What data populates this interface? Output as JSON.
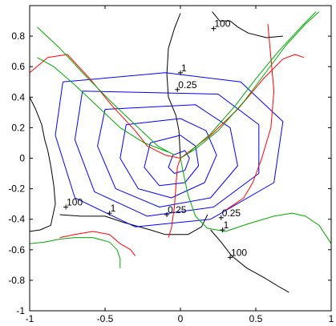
{
  "chart_data": {
    "type": "line",
    "title": "",
    "xlabel": "",
    "ylabel": "",
    "xlim": [
      -1,
      1
    ],
    "ylim": [
      -1,
      1
    ],
    "grid": false,
    "x_ticks": [
      "-1",
      "-0.5",
      "0",
      "0.5",
      "1"
    ],
    "y_ticks": [
      "-1",
      "-0.8",
      "-0.6",
      "-0.4",
      "-0.2",
      "0",
      "0.2",
      "0.4",
      "0.6",
      "0.8"
    ],
    "colors": {
      "contour_blue": "#0000ff",
      "curve_red": "#ff0000",
      "curve_green": "#00aa00",
      "curve_black": "#000000"
    },
    "annotations": [
      {
        "text": "100",
        "x": 0.22,
        "y": 0.85
      },
      {
        "text": "1",
        "x": 0.0,
        "y": 0.56
      },
      {
        "text": "0.25",
        "x": -0.02,
        "y": 0.45
      },
      {
        "text": "100",
        "x": -0.76,
        "y": -0.32
      },
      {
        "text": "1",
        "x": -0.47,
        "y": -0.36
      },
      {
        "text": "0.25",
        "x": -0.09,
        "y": -0.37
      },
      {
        "text": "0.25",
        "x": 0.27,
        "y": -0.39
      },
      {
        "text": "1",
        "x": 0.28,
        "y": -0.47
      },
      {
        "text": "100",
        "x": 0.33,
        "y": -0.65
      }
    ],
    "series": [
      {
        "color": "black",
        "points": [
          [
            -1.0,
            -0.48
          ],
          [
            -0.93,
            -0.47
          ],
          [
            -0.86,
            -0.44
          ],
          [
            -0.83,
            -0.3
          ],
          [
            -0.84,
            -0.18
          ],
          [
            -0.86,
            -0.05
          ],
          [
            -0.88,
            0.05
          ],
          [
            -0.9,
            0.12
          ],
          [
            -0.92,
            0.22
          ],
          [
            -0.96,
            0.32
          ],
          [
            -1.0,
            0.4
          ]
        ]
      },
      {
        "color": "black",
        "points": [
          [
            -0.8,
            -0.37
          ],
          [
            -0.66,
            -0.38
          ],
          [
            -0.5,
            -0.38
          ],
          [
            -0.38,
            -0.42
          ],
          [
            -0.2,
            -0.47
          ],
          [
            -0.1,
            -0.5
          ],
          [
            0.05,
            -0.5
          ],
          [
            0.14,
            -0.45
          ],
          [
            0.18,
            -0.37
          ]
        ]
      },
      {
        "color": "black",
        "points": [
          [
            0.21,
            0.96
          ],
          [
            0.26,
            0.9
          ],
          [
            0.33,
            0.9
          ],
          [
            0.38,
            0.86
          ],
          [
            0.45,
            0.82
          ],
          [
            0.57,
            0.79
          ],
          [
            0.68,
            0.8
          ]
        ]
      },
      {
        "color": "black",
        "points": [
          [
            0.0,
            0.95
          ],
          [
            -0.04,
            0.85
          ],
          [
            -0.08,
            0.72
          ],
          [
            -0.09,
            0.55
          ],
          [
            -0.08,
            0.4
          ],
          [
            -0.03,
            0.28
          ],
          [
            -0.01,
            0.18
          ],
          [
            0.0,
            0.0
          ]
        ]
      },
      {
        "color": "black",
        "points": [
          [
            0.2,
            -0.47
          ],
          [
            0.27,
            -0.55
          ],
          [
            0.34,
            -0.64
          ],
          [
            0.44,
            -0.72
          ],
          [
            0.55,
            -0.78
          ],
          [
            0.65,
            -0.84
          ],
          [
            0.72,
            -0.88
          ]
        ]
      },
      {
        "color": "blue",
        "points": [
          [
            -0.05,
            0.02
          ],
          [
            -0.08,
            -0.06
          ],
          [
            -0.04,
            -0.1
          ],
          [
            0.03,
            -0.08
          ],
          [
            0.06,
            0.0
          ],
          [
            0.03,
            0.05
          ],
          [
            -0.05,
            0.02
          ]
        ]
      },
      {
        "color": "blue",
        "points": [
          [
            -0.2,
            0.1
          ],
          [
            -0.24,
            -0.06
          ],
          [
            -0.14,
            -0.18
          ],
          [
            0.03,
            -0.16
          ],
          [
            0.12,
            -0.05
          ],
          [
            0.1,
            0.08
          ],
          [
            0.0,
            0.15
          ],
          [
            -0.2,
            0.1
          ]
        ]
      },
      {
        "color": "blue",
        "points": [
          [
            -0.36,
            0.22
          ],
          [
            -0.4,
            0.0
          ],
          [
            -0.28,
            -0.2
          ],
          [
            -0.06,
            -0.26
          ],
          [
            0.16,
            -0.16
          ],
          [
            0.24,
            0.02
          ],
          [
            0.17,
            0.18
          ],
          [
            0.0,
            0.26
          ],
          [
            -0.36,
            0.22
          ]
        ]
      },
      {
        "color": "blue",
        "points": [
          [
            -0.5,
            0.32
          ],
          [
            -0.55,
            0.08
          ],
          [
            -0.43,
            -0.2
          ],
          [
            -0.14,
            -0.32
          ],
          [
            0.2,
            -0.26
          ],
          [
            0.38,
            -0.05
          ],
          [
            0.33,
            0.2
          ],
          [
            0.1,
            0.35
          ],
          [
            -0.5,
            0.32
          ]
        ]
      },
      {
        "color": "blue",
        "points": [
          [
            -0.65,
            0.44
          ],
          [
            -0.7,
            0.12
          ],
          [
            -0.57,
            -0.22
          ],
          [
            -0.22,
            -0.38
          ],
          [
            0.22,
            -0.32
          ],
          [
            0.52,
            -0.1
          ],
          [
            0.52,
            0.22
          ],
          [
            0.25,
            0.42
          ],
          [
            -0.65,
            0.44
          ]
        ]
      },
      {
        "color": "blue",
        "points": [
          [
            -0.78,
            0.5
          ],
          [
            -0.83,
            0.15
          ],
          [
            -0.7,
            -0.26
          ],
          [
            -0.3,
            -0.45
          ],
          [
            0.2,
            -0.4
          ],
          [
            0.62,
            -0.16
          ],
          [
            0.68,
            0.24
          ],
          [
            0.4,
            0.5
          ],
          [
            -0.1,
            0.56
          ],
          [
            -0.78,
            0.5
          ]
        ]
      },
      {
        "color": "red",
        "points": [
          [
            -1.0,
            0.56
          ],
          [
            -0.88,
            0.66
          ],
          [
            -0.75,
            0.68
          ],
          [
            -0.6,
            0.52
          ],
          [
            -0.45,
            0.34
          ],
          [
            -0.3,
            0.18
          ],
          [
            -0.22,
            0.08
          ],
          [
            -0.1,
            0.02
          ],
          [
            0.0,
            0.0
          ]
        ]
      },
      {
        "color": "red",
        "points": [
          [
            0.0,
            0.0
          ],
          [
            0.08,
            0.06
          ],
          [
            0.2,
            0.15
          ],
          [
            0.38,
            0.32
          ],
          [
            0.55,
            0.52
          ],
          [
            0.68,
            0.65
          ],
          [
            0.76,
            0.68
          ],
          [
            0.82,
            0.66
          ]
        ]
      },
      {
        "color": "red",
        "points": [
          [
            -0.8,
            -0.52
          ],
          [
            -0.7,
            -0.5
          ],
          [
            -0.58,
            -0.48
          ],
          [
            -0.47,
            -0.5
          ],
          [
            -0.4,
            -0.56
          ],
          [
            -0.33,
            -0.6
          ],
          [
            -0.3,
            -0.64
          ]
        ]
      },
      {
        "color": "red",
        "points": [
          [
            0.0,
            0.0
          ],
          [
            -0.02,
            -0.06
          ],
          [
            -0.03,
            -0.18
          ],
          [
            -0.04,
            -0.32
          ],
          [
            -0.06,
            -0.46
          ],
          [
            -0.08,
            -0.52
          ]
        ]
      },
      {
        "color": "red",
        "points": [
          [
            0.58,
            0.88
          ],
          [
            0.6,
            0.66
          ],
          [
            0.62,
            0.44
          ],
          [
            0.6,
            0.2
          ],
          [
            0.54,
            0.0
          ],
          [
            0.48,
            -0.16
          ],
          [
            0.42,
            -0.26
          ],
          [
            0.3,
            -0.34
          ]
        ]
      },
      {
        "color": "green",
        "points": [
          [
            -0.95,
            0.86
          ],
          [
            -0.8,
            0.72
          ],
          [
            -0.63,
            0.54
          ],
          [
            -0.45,
            0.36
          ],
          [
            -0.28,
            0.2
          ],
          [
            -0.15,
            0.08
          ],
          [
            -0.04,
            0.02
          ]
        ]
      },
      {
        "color": "green",
        "points": [
          [
            0.0,
            0.0
          ],
          [
            0.1,
            0.06
          ],
          [
            0.25,
            0.18
          ],
          [
            0.42,
            0.37
          ],
          [
            0.58,
            0.58
          ],
          [
            0.7,
            0.74
          ],
          [
            0.83,
            0.88
          ],
          [
            0.92,
            0.96
          ]
        ]
      },
      {
        "color": "green",
        "points": [
          [
            -1.0,
            -0.56
          ],
          [
            -0.9,
            -0.55
          ],
          [
            -0.8,
            -0.53
          ],
          [
            -0.7,
            -0.52
          ],
          [
            -0.58,
            -0.52
          ],
          [
            -0.47,
            -0.55
          ],
          [
            -0.42,
            -0.6
          ],
          [
            -0.4,
            -0.66
          ],
          [
            -0.4,
            -0.72
          ]
        ]
      },
      {
        "color": "green",
        "points": [
          [
            0.0,
            0.0
          ],
          [
            0.02,
            -0.1
          ],
          [
            0.05,
            -0.24
          ],
          [
            0.1,
            -0.38
          ],
          [
            0.18,
            -0.46
          ],
          [
            0.3,
            -0.48
          ],
          [
            0.45,
            -0.43
          ],
          [
            0.62,
            -0.38
          ],
          [
            0.74,
            -0.36
          ],
          [
            0.83,
            -0.38
          ],
          [
            0.92,
            -0.44
          ],
          [
            1.0,
            -0.56
          ]
        ]
      },
      {
        "color": "green",
        "points": [
          [
            -0.95,
            0.66
          ],
          [
            -0.84,
            0.6
          ],
          [
            -0.7,
            0.48
          ],
          [
            -0.55,
            0.34
          ],
          [
            -0.4,
            0.2
          ],
          [
            -0.24,
            0.1
          ],
          [
            -0.08,
            0.04
          ]
        ]
      },
      {
        "color": "green",
        "points": [
          [
            0.9,
            0.96
          ],
          [
            0.8,
            0.86
          ],
          [
            0.65,
            0.7
          ],
          [
            0.5,
            0.52
          ],
          [
            0.36,
            0.34
          ],
          [
            0.2,
            0.16
          ],
          [
            0.06,
            0.04
          ]
        ]
      }
    ]
  }
}
